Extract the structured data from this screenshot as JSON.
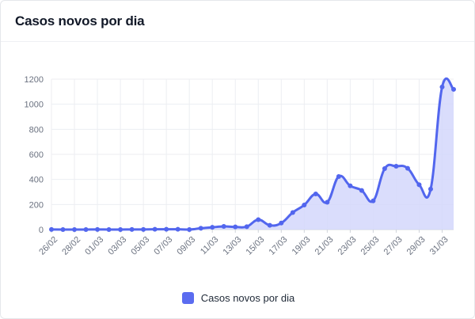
{
  "header": {
    "title": "Casos novos por dia"
  },
  "legend": {
    "label": "Casos novos por dia"
  },
  "colors": {
    "line": "#5266ee",
    "fill": "#d3d7fb",
    "grid": "#eceef2",
    "tick": "#6b7280",
    "swatch": "#5b6cf0"
  },
  "chart_data": {
    "type": "area",
    "title": "Casos novos por dia",
    "xlabel": "",
    "ylabel": "",
    "ylim": [
      0,
      1200
    ],
    "yticks": [
      0,
      200,
      400,
      600,
      800,
      1000,
      1200
    ],
    "grid": true,
    "legend_position": "bottom",
    "x": [
      "26/02",
      "27/02",
      "28/02",
      "29/02",
      "01/03",
      "02/03",
      "03/03",
      "04/03",
      "05/03",
      "06/03",
      "07/03",
      "08/03",
      "09/03",
      "10/03",
      "11/03",
      "12/03",
      "13/03",
      "14/03",
      "15/03",
      "16/03",
      "17/03",
      "18/03",
      "19/03",
      "20/03",
      "21/03",
      "22/03",
      "23/03",
      "24/03",
      "25/03",
      "26/03",
      "27/03",
      "28/03",
      "29/03",
      "30/03",
      "31/03",
      "01/04"
    ],
    "xtick_labels": [
      "26/02",
      "28/02",
      "01/03",
      "03/03",
      "05/03",
      "07/03",
      "09/03",
      "11/03",
      "13/03",
      "15/03",
      "17/03",
      "19/03",
      "21/03",
      "23/03",
      "25/03",
      "27/03",
      "29/03",
      "31/03"
    ],
    "series": [
      {
        "name": "Casos novos por dia",
        "values": [
          1,
          0,
          0,
          0,
          1,
          0,
          0,
          1,
          1,
          2,
          2,
          2,
          0,
          10,
          18,
          25,
          21,
          23,
          79,
          34,
          52,
          136,
          196,
          284,
          218,
          423,
          349,
          312,
          229,
          486,
          505,
          489,
          358,
          323,
          1138,
          1119
        ]
      }
    ]
  }
}
